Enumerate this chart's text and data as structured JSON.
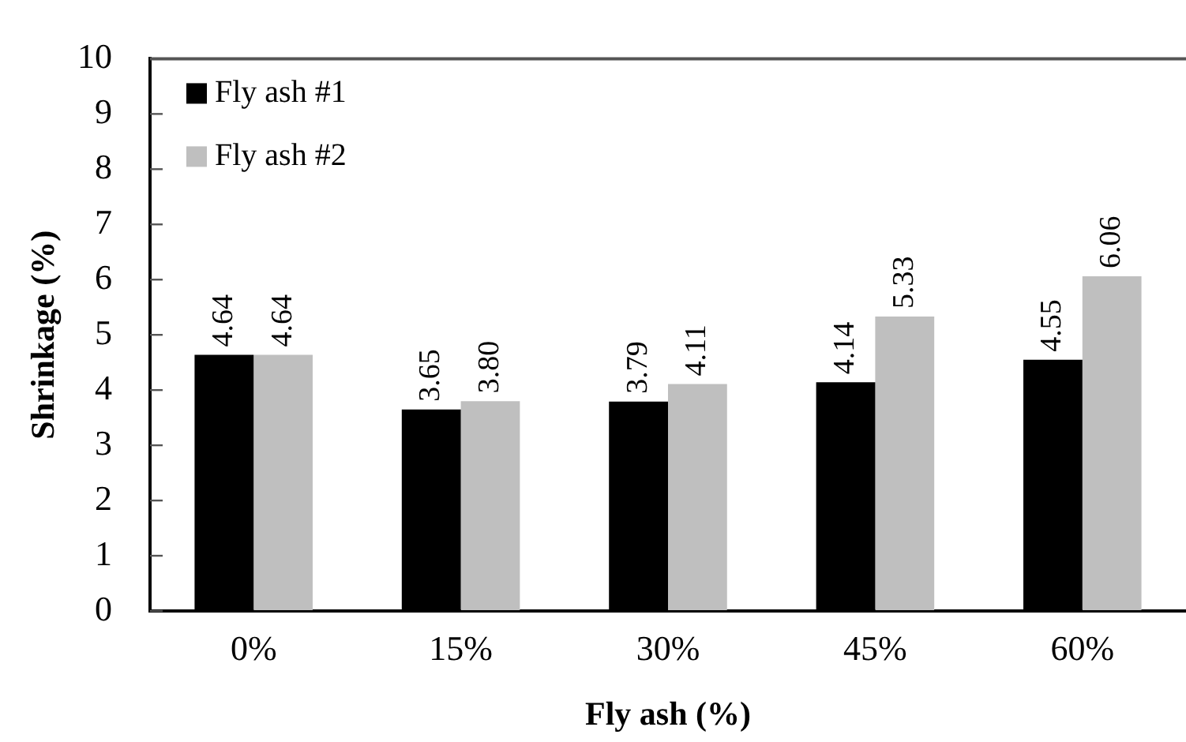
{
  "chart_data": {
    "type": "bar",
    "xlabel": "Fly ash (%)",
    "ylabel": "Shrinkage (%)",
    "categories": [
      "0%",
      "15%",
      "30%",
      "45%",
      "60%"
    ],
    "series": [
      {
        "name": "Fly ash #1",
        "color": "#000000",
        "values": [
          4.64,
          3.65,
          3.79,
          4.14,
          4.55
        ],
        "value_labels": [
          "4.64",
          "3.65",
          "3.79",
          "4.14",
          "4.55"
        ]
      },
      {
        "name": "Fly ash #2",
        "color": "#bfbfbf",
        "values": [
          4.64,
          3.8,
          4.11,
          5.33,
          6.06
        ],
        "value_labels": [
          "4.64",
          "3.80",
          "4.11",
          "5.33",
          "6.06"
        ]
      }
    ],
    "ylim": [
      0,
      10
    ],
    "yticks": [
      0,
      1,
      2,
      3,
      4,
      5,
      6,
      7,
      8,
      9,
      10
    ],
    "grid": false,
    "legend": "top left"
  }
}
